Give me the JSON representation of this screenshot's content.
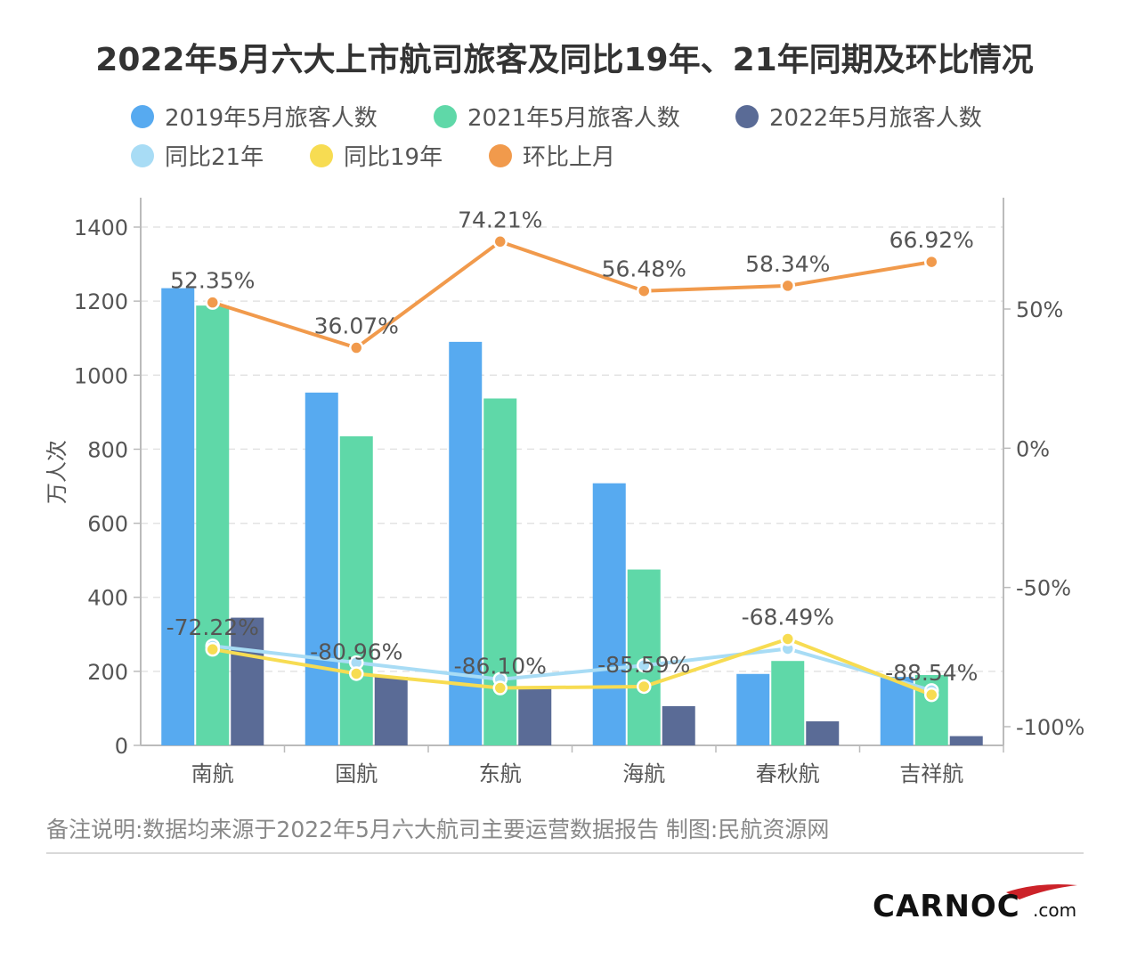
{
  "title": "2022年5月六大上市航司旅客及同比19年、21年同期及环比情况",
  "footnote": "备注说明:数据均来源于2022年5月六大航司主要运营数据报告 制图:民航资源网",
  "logo": {
    "main": "CARNOC",
    "suffix": ".com"
  },
  "colors": {
    "s2019": "#57aaf0",
    "s2021": "#5fd8a8",
    "s2022": "#5a6b96",
    "yoy21": "#a8dcf5",
    "yoy19": "#f7dc52",
    "mom": "#f19a4c",
    "logo_swoosh": "#cc2229"
  },
  "chart_data": {
    "type": "bar",
    "categories": [
      "南航",
      "国航",
      "东航",
      "海航",
      "春秋航",
      "吉祥航"
    ],
    "ylabel": "万人次",
    "ylim": [
      0,
      1400
    ],
    "yticks": [
      "0",
      "200",
      "400",
      "600",
      "800",
      "1000",
      "1200",
      "1400"
    ],
    "y2lim": [
      -100,
      80
    ],
    "y2ticks": [
      "-100%",
      "-50%",
      "0%",
      "50%"
    ],
    "grid": true,
    "legend_position": "top",
    "bar_series": [
      {
        "name": "2019年5月旅客人数",
        "values": [
          1235,
          953,
          1090,
          708,
          193,
          185
        ]
      },
      {
        "name": "2021年5月旅客人数",
        "values": [
          1188,
          835,
          937,
          475,
          228,
          190
        ]
      },
      {
        "name": "2022年5月旅客人数",
        "values": [
          345,
          185,
          160,
          106,
          65,
          25
        ]
      }
    ],
    "line_series": [
      {
        "name": "同比21年",
        "values": [
          -71,
          -77,
          -83,
          -78,
          -72,
          -87
        ],
        "labels": [
          "",
          "",
          "",
          "",
          "",
          ""
        ]
      },
      {
        "name": "同比19年",
        "values": [
          -72.22,
          -80.96,
          -86.1,
          -85.59,
          -68.49,
          -88.54
        ],
        "labels": [
          "-72.22%",
          "-80.96%",
          "-86.10%",
          "-85.59%",
          "-68.49%",
          "-88.54%"
        ]
      },
      {
        "name": "环比上月",
        "values": [
          52.35,
          36.07,
          74.21,
          56.48,
          58.34,
          66.92
        ],
        "labels": [
          "52.35%",
          "36.07%",
          "74.21%",
          "56.48%",
          "58.34%",
          "66.92%"
        ]
      }
    ]
  }
}
